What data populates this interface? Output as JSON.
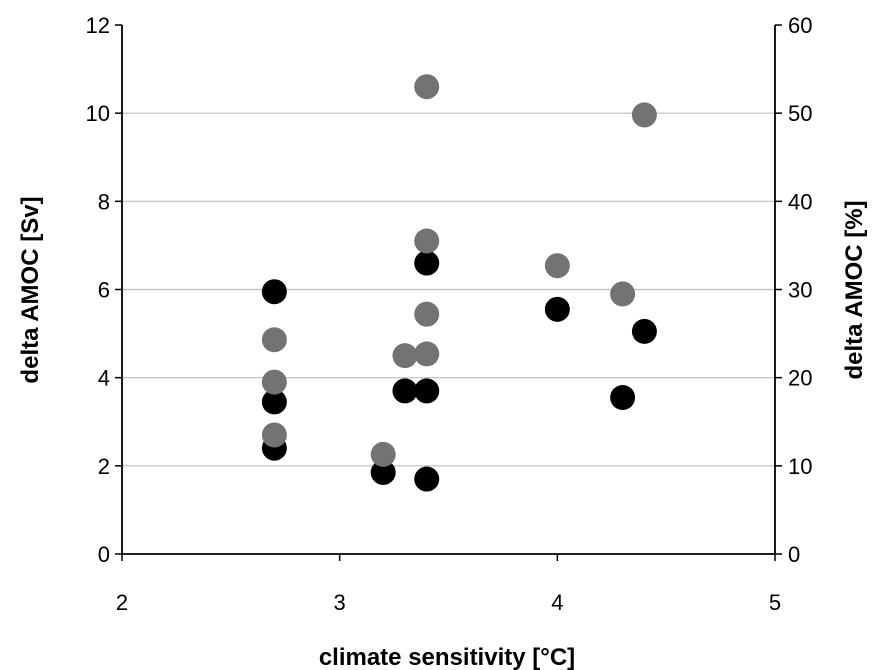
{
  "chart_data": {
    "type": "scatter",
    "xlabel": "climate sensitivity [°C]",
    "ylabel": "delta AMOC [Sv]",
    "y2label": "delta AMOC [%]",
    "xlim": [
      2,
      5
    ],
    "ylim": [
      0,
      12
    ],
    "y2lim": [
      0,
      60
    ],
    "xticks": [
      "2",
      "3",
      "4",
      "5"
    ],
    "yticks": [
      "0",
      "2",
      "4",
      "6",
      "8",
      "10",
      "12"
    ],
    "y2ticks": [
      "0",
      "10",
      "20",
      "30",
      "40",
      "50",
      "60"
    ],
    "grid": "horizontal",
    "series": [
      {
        "axis": "left",
        "color": "#000000",
        "points": [
          [
            2.7,
            5.95
          ],
          [
            2.7,
            3.45
          ],
          [
            2.7,
            2.4
          ],
          [
            3.2,
            1.85
          ],
          [
            3.3,
            3.7
          ],
          [
            3.4,
            3.7
          ],
          [
            3.4,
            6.6
          ],
          [
            3.4,
            1.7
          ],
          [
            4.0,
            5.55
          ],
          [
            4.3,
            3.55
          ],
          [
            4.4,
            5.05
          ]
        ]
      },
      {
        "axis": "right",
        "color": "#737373",
        "points": [
          [
            2.7,
            24.3
          ],
          [
            2.7,
            19.5
          ],
          [
            2.7,
            13.5
          ],
          [
            3.2,
            11.3
          ],
          [
            3.3,
            22.5
          ],
          [
            3.4,
            22.7
          ],
          [
            3.4,
            27.2
          ],
          [
            3.4,
            35.5
          ],
          [
            3.4,
            53.0
          ],
          [
            4.0,
            32.7
          ],
          [
            4.3,
            29.5
          ],
          [
            4.4,
            49.8
          ]
        ]
      }
    ]
  }
}
